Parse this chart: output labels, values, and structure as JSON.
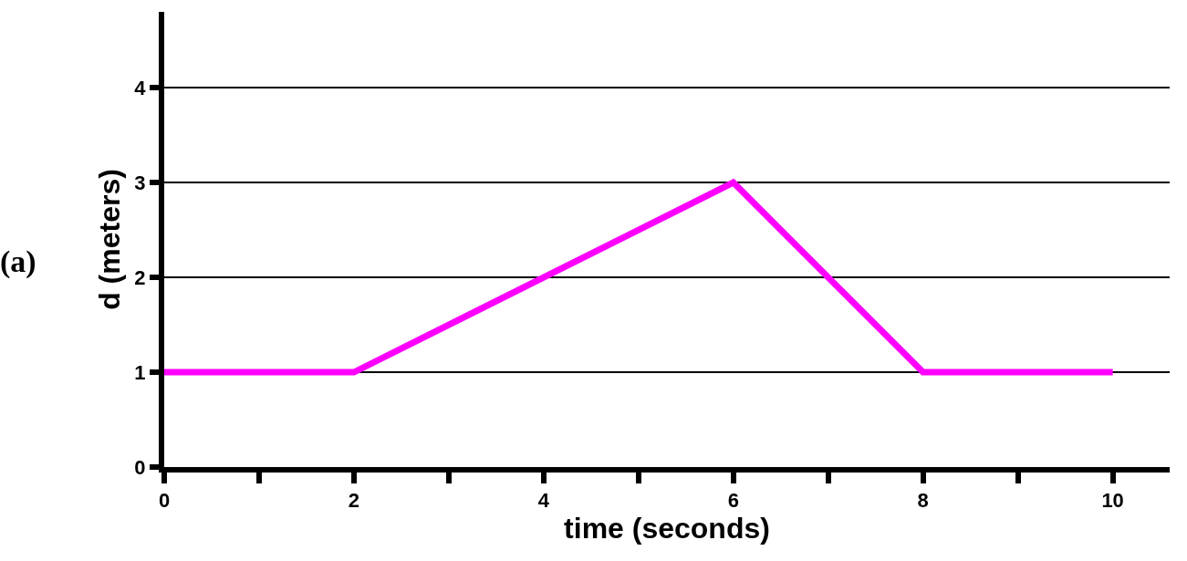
{
  "chart_data": {
    "type": "line",
    "xlabel": "time (seconds)",
    "ylabel": "d (meters)",
    "x": [
      0,
      2,
      6,
      8,
      10
    ],
    "series": [
      {
        "color": "#ff00ff",
        "values": [
          1,
          1,
          3,
          1,
          1
        ]
      }
    ],
    "xlim": [
      0,
      10.6
    ],
    "ylim": [
      0,
      4.8
    ],
    "xticks": [
      0,
      {
        "value": 1,
        "label": null
      },
      2,
      {
        "value": 3,
        "label": null
      },
      4,
      {
        "value": 5,
        "label": null
      },
      6,
      {
        "value": 7,
        "label": null
      },
      8,
      {
        "value": 9,
        "label": null
      },
      10
    ],
    "yticks": [
      0,
      1,
      2,
      3,
      4
    ],
    "grid": "y",
    "marker": "none",
    "line_style": "solid",
    "annotations": [
      "(a)"
    ]
  }
}
